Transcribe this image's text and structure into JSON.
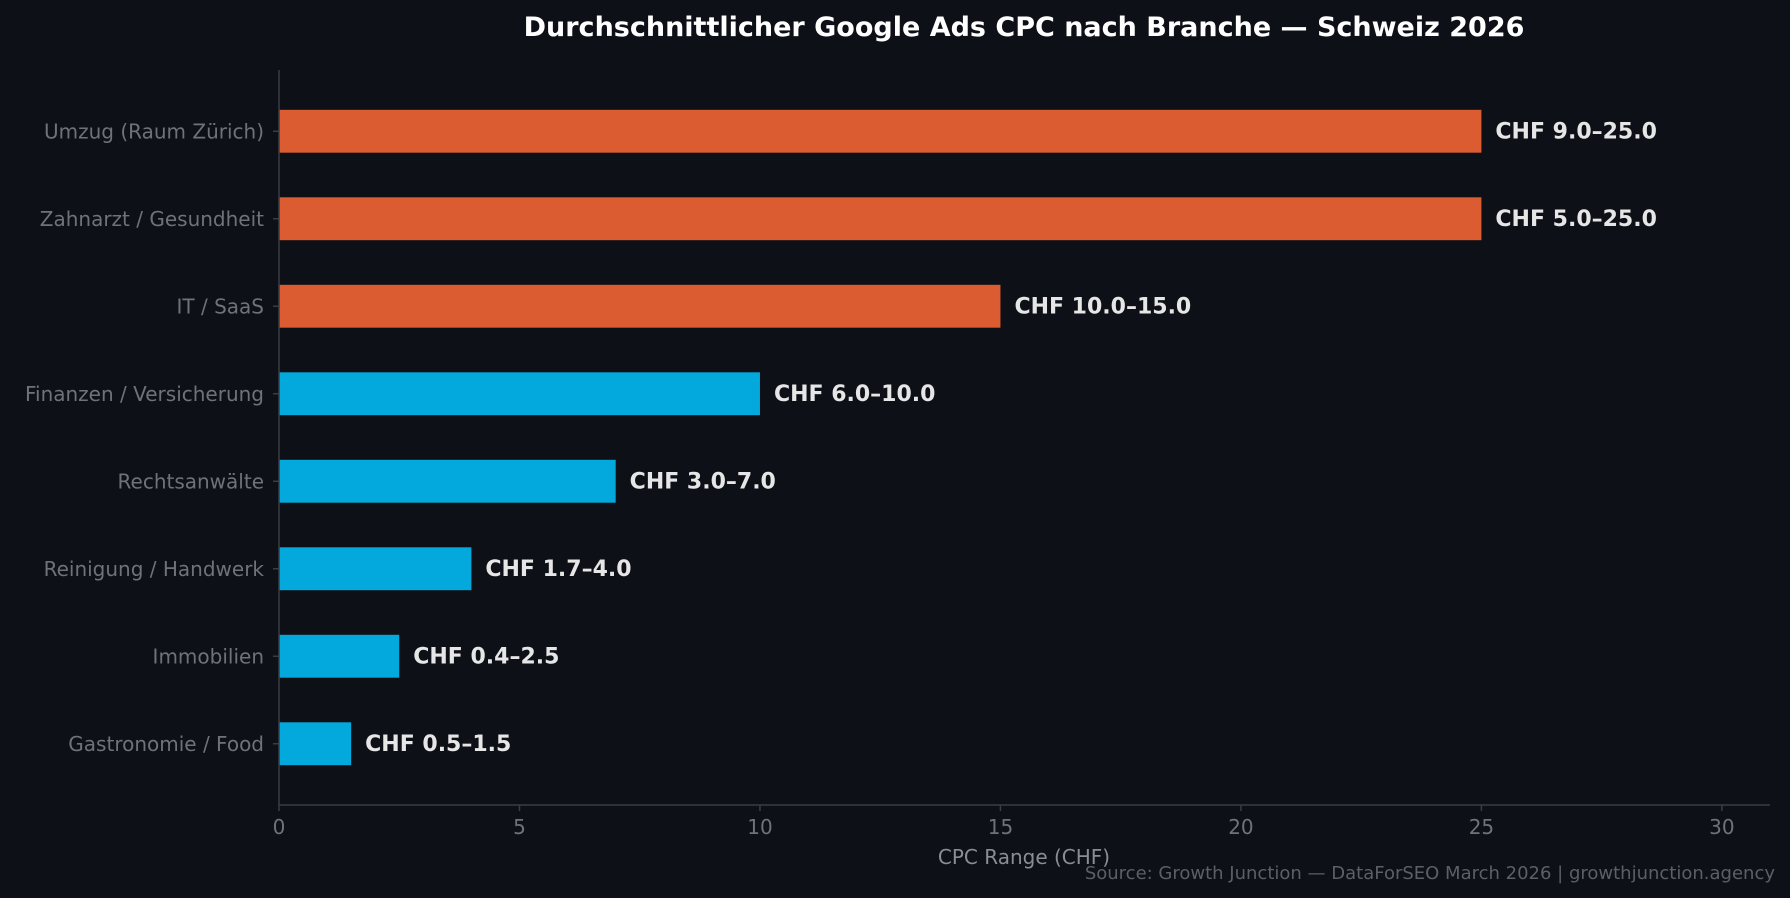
{
  "chart_data": {
    "type": "bar",
    "orientation": "horizontal",
    "title": "Durchschnittlicher Google Ads CPC nach Branche — Schweiz 2026",
    "xlabel": "CPC Range (CHF)",
    "ylabel": "",
    "xlim": [
      0,
      31
    ],
    "x_ticks": [
      0,
      5,
      10,
      15,
      20,
      25,
      30
    ],
    "grid": false,
    "categories": [
      "Umzug (Raum Zürich)",
      "Zahnarzt / Gesundheit",
      "IT / SaaS",
      "Finanzen / Versicherung",
      "Rechtsanwälte",
      "Reinigung / Handwerk",
      "Immobilien",
      "Gastronomie / Food"
    ],
    "ranges": [
      [
        9.0,
        25.0
      ],
      [
        5.0,
        25.0
      ],
      [
        10.0,
        15.0
      ],
      [
        6.0,
        10.0
      ],
      [
        3.0,
        7.0
      ],
      [
        1.7,
        4.0
      ],
      [
        0.4,
        2.5
      ],
      [
        0.5,
        1.5
      ]
    ],
    "values": [
      25.0,
      25.0,
      15.0,
      10.0,
      7.0,
      4.0,
      2.5,
      1.5
    ],
    "data_labels": [
      "CHF 9.0–25.0",
      "CHF 5.0–25.0",
      "CHF 10.0–15.0",
      "CHF 6.0–10.0",
      "CHF 3.0–7.0",
      "CHF 1.7–4.0",
      "CHF 0.4–2.5",
      "CHF 0.5–1.5"
    ],
    "bar_colors": [
      "#db5c31",
      "#db5c31",
      "#db5c31",
      "#03a9dd",
      "#03a9dd",
      "#03a9dd",
      "#03a9dd",
      "#03a9dd"
    ],
    "source": "Source: Growth Junction — DataForSEO March 2026 | growthjunction.agency"
  },
  "colors": {
    "background": "#0d1017",
    "axis": "#3a3d42",
    "title": "#ffffff",
    "label": "#6f7378",
    "data_label": "#e6e6e6"
  }
}
